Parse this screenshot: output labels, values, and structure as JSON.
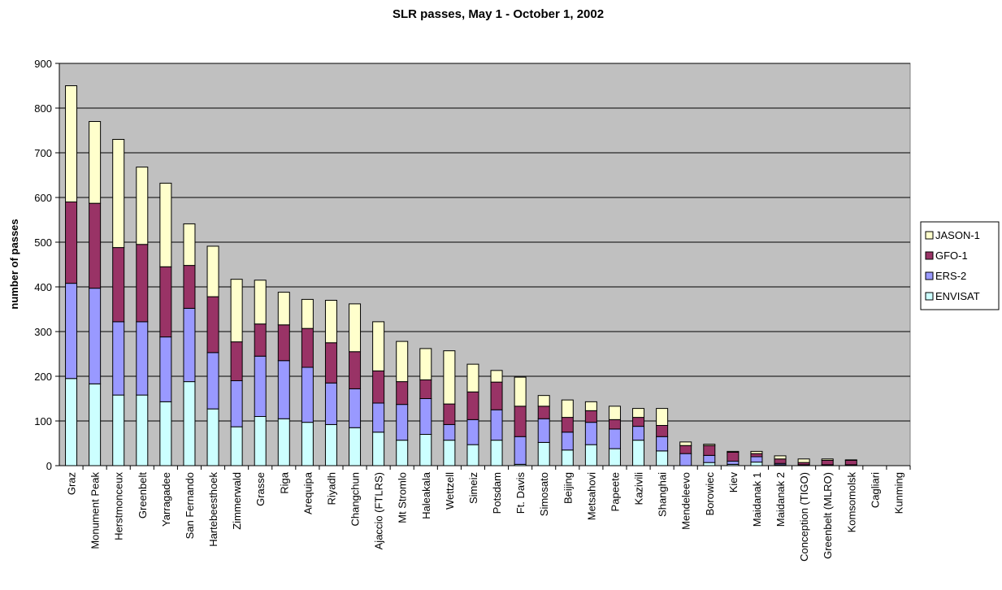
{
  "chart_data": {
    "type": "stacked-bar",
    "title": "SLR passes, May 1 - October 1, 2002",
    "y_label": "number of passes",
    "categories": [
      "Graz",
      "Monument Peak",
      "Herstmonceux",
      "Greenbelt",
      "Yarragadee",
      "San Fernando",
      "Hartebeesthoek",
      "Zimmerwald",
      "Grasse",
      "Riga",
      "Arequipa",
      "Riyadh",
      "Changchun",
      "Ajaccio (FTLRS)",
      "Mt Stromlo",
      "Haleakala",
      "Wettzell",
      "Simeiz",
      "Potsdam",
      "Ft. Davis",
      "Simosato",
      "Beijing",
      "Metsahovi",
      "Papeete",
      "Kazivili",
      "Shanghai",
      "Mendeleevo",
      "Borowiec",
      "Kiev",
      "Maidanak 1",
      "Maidanak 2",
      "Conception (TIGO)",
      "Greenbelt (MLRO)",
      "Komsomolsk",
      "Cagliari",
      "Kunming"
    ],
    "series": [
      {
        "name": "ENVISAT",
        "color": "#ccffff",
        "values": [
          195,
          183,
          158,
          158,
          143,
          188,
          127,
          87,
          110,
          105,
          97,
          92,
          85,
          75,
          57,
          70,
          57,
          47,
          57,
          3,
          52,
          35,
          47,
          38,
          57,
          33,
          0,
          7,
          3,
          8,
          2,
          0,
          0,
          0,
          0,
          0
        ]
      },
      {
        "name": "ERS-2",
        "color": "#9999ff",
        "values": [
          213,
          214,
          164,
          164,
          145,
          164,
          126,
          103,
          135,
          130,
          123,
          93,
          87,
          65,
          80,
          80,
          35,
          56,
          68,
          62,
          53,
          40,
          50,
          44,
          31,
          32,
          27,
          16,
          7,
          12,
          3,
          2,
          2,
          2,
          0,
          0
        ]
      },
      {
        "name": "GFO-1",
        "color": "#993366",
        "values": [
          182,
          190,
          166,
          173,
          157,
          96,
          125,
          87,
          72,
          80,
          87,
          90,
          83,
          72,
          51,
          42,
          46,
          62,
          62,
          68,
          28,
          33,
          26,
          21,
          20,
          25,
          18,
          22,
          20,
          7,
          10,
          5,
          10,
          10,
          0,
          0
        ]
      },
      {
        "name": "JASON-1",
        "color": "#ffffcc",
        "values": [
          260,
          183,
          242,
          173,
          187,
          93,
          113,
          140,
          98,
          73,
          65,
          95,
          107,
          110,
          90,
          70,
          119,
          62,
          26,
          65,
          24,
          39,
          20,
          30,
          20,
          38,
          8,
          3,
          2,
          5,
          7,
          8,
          3,
          1,
          0,
          0
        ]
      }
    ],
    "ylim": [
      0,
      900
    ],
    "yticks": [
      0,
      100,
      200,
      300,
      400,
      500,
      600,
      700,
      800,
      900
    ],
    "grid": true,
    "legend": "right",
    "background": "#c0c0c0"
  }
}
